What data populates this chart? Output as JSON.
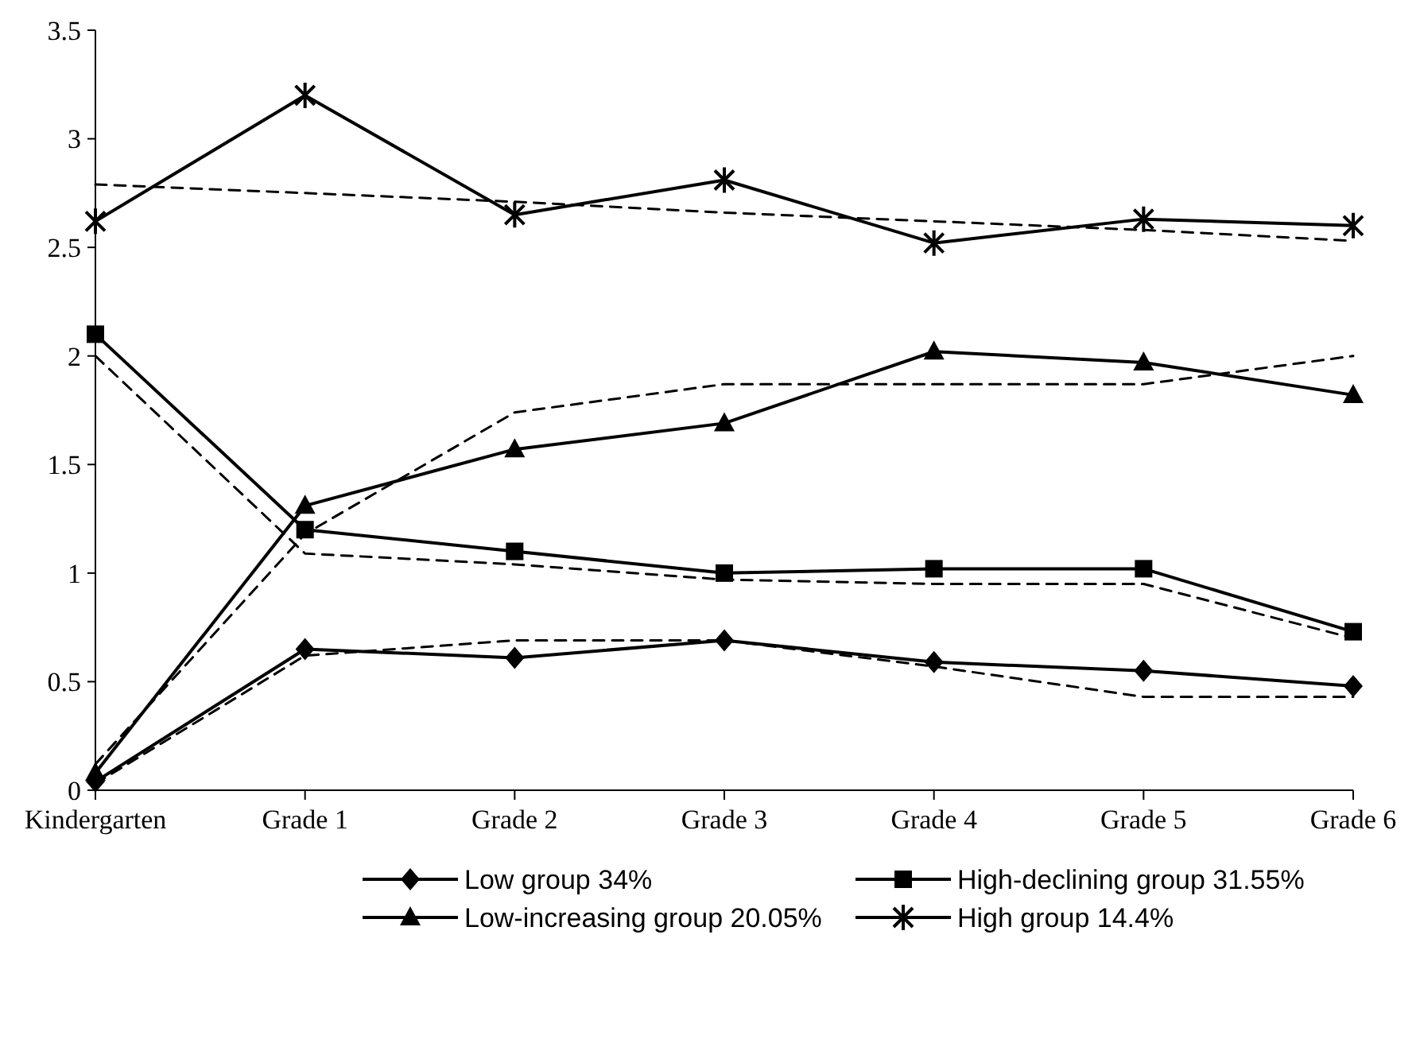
{
  "chart_data": {
    "type": "line",
    "categories": [
      "Kindergarten",
      "Grade 1",
      "Grade 2",
      "Grade 3",
      "Grade 4",
      "Grade 5",
      "Grade 6"
    ],
    "ylim": [
      0,
      3.5
    ],
    "yticks": [
      0,
      0.5,
      1,
      1.5,
      2,
      2.5,
      3,
      3.5
    ],
    "grid": false,
    "legend": "bottom",
    "series": [
      {
        "name": "Low group 34%",
        "color": "#000000",
        "marker": "diamond",
        "line_style": "solid",
        "values": [
          0.04,
          0.65,
          0.61,
          0.69,
          0.59,
          0.55,
          0.48
        ]
      },
      {
        "name": "High-declining group 31.55%",
        "color": "#000000",
        "marker": "square",
        "line_style": "solid",
        "values": [
          2.1,
          1.2,
          1.1,
          1.0,
          1.02,
          1.02,
          0.73
        ]
      },
      {
        "name": "Low-increasing group 20.05%",
        "color": "#000000",
        "marker": "triangle",
        "line_style": "solid",
        "values": [
          0.08,
          1.31,
          1.57,
          1.69,
          2.02,
          1.97,
          1.82
        ]
      },
      {
        "name": "High group 14.4%",
        "color": "#000000",
        "marker": "cross",
        "line_style": "solid",
        "values": [
          2.62,
          3.2,
          2.65,
          2.81,
          2.52,
          2.63,
          2.6
        ]
      },
      {
        "color": "#000000",
        "marker": "none",
        "line_style": "dashed",
        "values": [
          0.03,
          0.62,
          0.69,
          0.69,
          0.57,
          0.43,
          0.43
        ]
      },
      {
        "color": "#000000",
        "marker": "none",
        "line_style": "dashed",
        "values": [
          2.0,
          1.09,
          1.04,
          0.97,
          0.95,
          0.95,
          0.7
        ]
      },
      {
        "color": "#000000",
        "marker": "none",
        "line_style": "dashed",
        "values": [
          0.12,
          1.18,
          1.74,
          1.87,
          1.87,
          1.87,
          2.0
        ]
      },
      {
        "color": "#000000",
        "marker": "none",
        "line_style": "dashed",
        "values": [
          2.79,
          2.75,
          2.71,
          2.66,
          2.62,
          2.58,
          2.53
        ]
      }
    ]
  }
}
